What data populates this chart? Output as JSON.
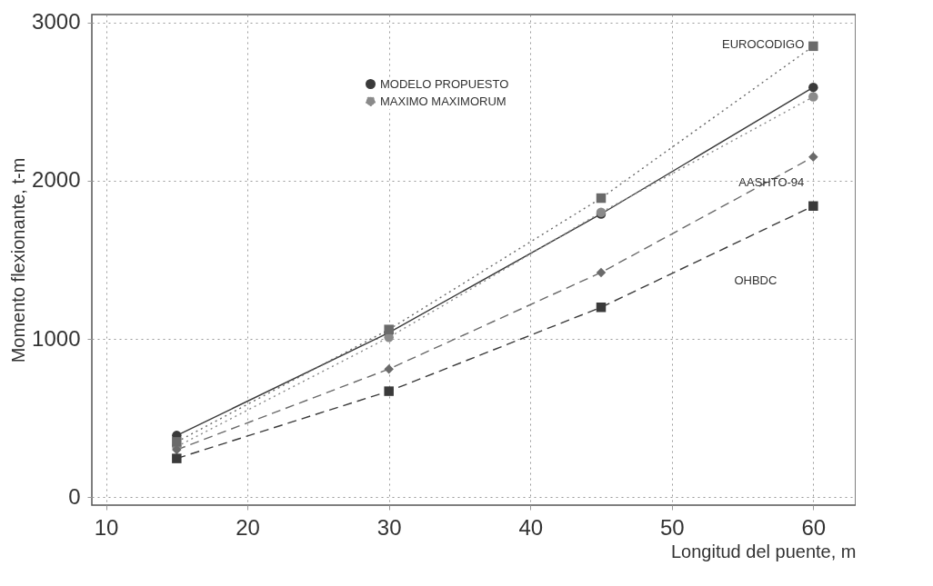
{
  "chart_data": {
    "type": "line",
    "xlabel": "Longitud del puente, m",
    "ylabel": "Momento flexionante, t-m",
    "x": [
      15,
      30,
      45,
      60
    ],
    "series": [
      {
        "name": "MODELO PROPUESTO",
        "color": "#3a3a3a",
        "marker": "circle",
        "line_style": "solid",
        "values": [
          390,
          1040,
          1790,
          2590
        ]
      },
      {
        "name": "MAXIMO MAXIMORUM",
        "color": "#8a8a8a",
        "marker": "circle",
        "line_style": "dotted",
        "values": [
          320,
          1010,
          1800,
          2530
        ]
      },
      {
        "name": "EUROCODIGO",
        "color": "#6a6a6a",
        "marker": "square",
        "line_style": "dotted",
        "values": [
          350,
          1060,
          1890,
          2850
        ]
      },
      {
        "name": "AASHTO-94",
        "color": "#6a6a6a",
        "marker": "diamond",
        "line_style": "dashed",
        "values": [
          300,
          810,
          1420,
          2150
        ]
      },
      {
        "name": "OHBDC",
        "color": "#3a3a3a",
        "marker": "square",
        "line_style": "dashed",
        "values": [
          245,
          670,
          1200,
          1840
        ]
      }
    ],
    "xlim": [
      9,
      63
    ],
    "xticks": [
      10,
      20,
      30,
      40,
      50,
      60
    ],
    "ylim": [
      -50,
      3050
    ],
    "yticks": [
      0,
      1000,
      2000,
      3000
    ],
    "grid": true,
    "legend": "top"
  }
}
